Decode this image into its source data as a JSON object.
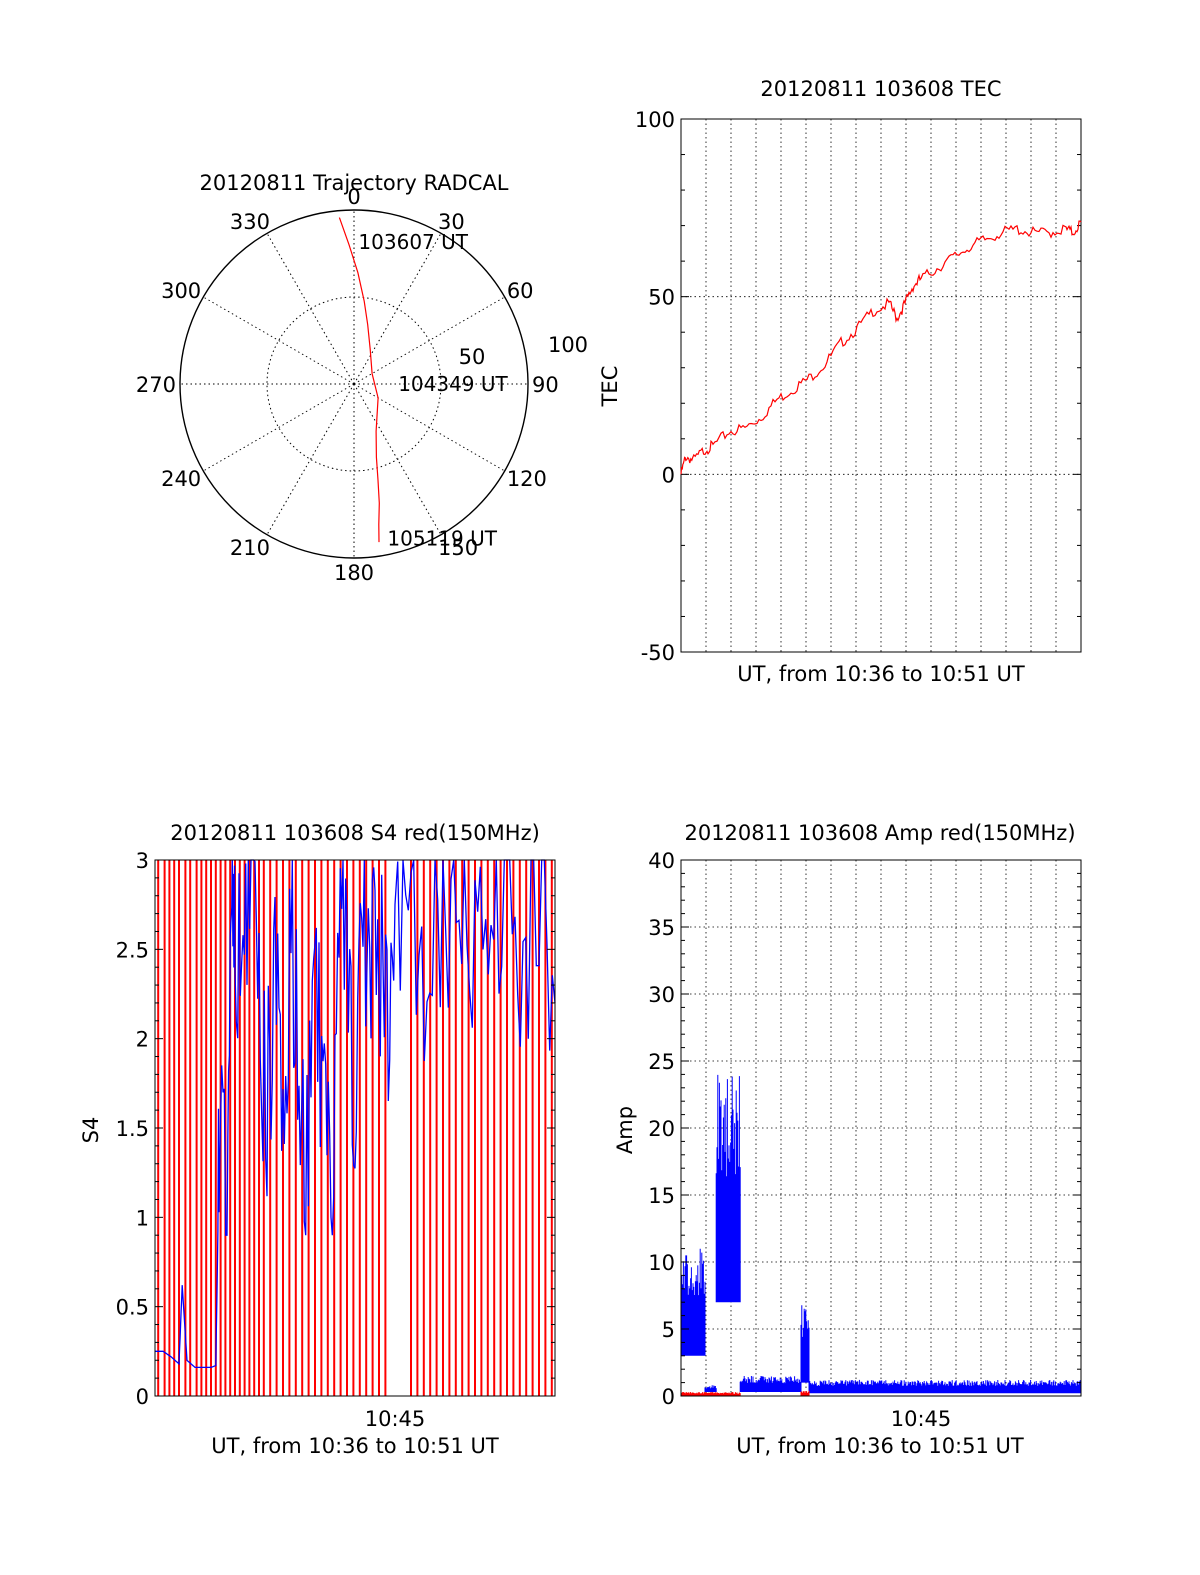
{
  "colors": {
    "red": "#ff0000",
    "blue": "#0000ff",
    "axis": "#000000",
    "grid": "#000000"
  },
  "chart_data": [
    {
      "id": "trajectory",
      "type": "polar",
      "title": "20120811 Trajectory RADCAL",
      "angle_ticks": [
        "0",
        "30",
        "60",
        "90",
        "120",
        "150",
        "180",
        "210",
        "240",
        "270",
        "300",
        "330"
      ],
      "angle_values": [
        0,
        30,
        60,
        90,
        120,
        150,
        180,
        210,
        240,
        270,
        300,
        330
      ],
      "radius_ticks": [
        "50",
        "100"
      ],
      "radius_values": [
        50,
        100
      ],
      "rlim": [
        0,
        100
      ],
      "grid": true,
      "series": [
        {
          "color": "#ff0000",
          "points": [
            [
              355,
              96
            ],
            [
              358,
              80
            ],
            [
              2,
              64
            ],
            [
              7,
              48
            ],
            [
              13,
              35
            ],
            [
              25,
              22
            ],
            [
              60,
              12
            ],
            [
              120,
              16
            ],
            [
              155,
              30
            ],
            [
              163,
              44
            ],
            [
              166,
              57
            ],
            [
              168,
              70
            ],
            [
              170,
              82
            ],
            [
              171,
              92
            ]
          ]
        }
      ],
      "annotations": [
        {
          "text": "103607 UT",
          "az": 5,
          "r": 82
        },
        {
          "text": "104349 UT",
          "az": 90,
          "r": 30
        },
        {
          "text": "105119 UT",
          "az": 165,
          "r": 92
        }
      ]
    },
    {
      "id": "tec",
      "type": "line",
      "title": "20120811 103608 TEC",
      "xlabel": "UT, from 10:36 to 10:51 UT",
      "ylabel": "TEC",
      "xlim": [
        10.6,
        10.85
      ],
      "ylim": [
        -50,
        100
      ],
      "yticks": [
        "-50",
        "0",
        "50",
        "100"
      ],
      "ytick_values": [
        -50,
        0,
        50,
        100
      ],
      "grid": true,
      "series": [
        {
          "color": "#ff0000",
          "x": [
            10.6,
            10.603,
            10.608,
            10.615,
            10.62,
            10.63,
            10.64,
            10.65,
            10.66,
            10.67,
            10.68,
            10.69,
            10.7,
            10.71,
            10.72,
            10.73,
            10.735,
            10.74,
            10.745,
            10.75,
            10.76,
            10.77,
            10.78,
            10.79,
            10.8,
            10.81,
            10.82,
            10.83,
            10.84,
            10.845,
            10.85
          ],
          "y": [
            0,
            5,
            4,
            7,
            8,
            12,
            13,
            16,
            21,
            24,
            27,
            31,
            37,
            41,
            46,
            48,
            44,
            48,
            53,
            55,
            58,
            61,
            64,
            66,
            68,
            69,
            68,
            68,
            69,
            68,
            71
          ]
        }
      ]
    },
    {
      "id": "s4",
      "type": "line",
      "title": "20120811 103608 S4 red(150MHz)",
      "xlabel": "UT, from 10:36 to 10:51 UT",
      "ylabel": "S4",
      "xlim": [
        10.6,
        10.85
      ],
      "ylim": [
        0,
        3
      ],
      "yticks": [
        "0",
        "0.5",
        "1",
        "1.5",
        "2",
        "2.5",
        "3"
      ],
      "ytick_values": [
        0,
        0.5,
        1,
        1.5,
        2,
        2.5,
        3
      ],
      "xticks": [
        "10:45"
      ],
      "xtick_values": [
        10.75
      ],
      "grid": false,
      "series": [
        {
          "color": "#ff0000",
          "spikes_x": [
            10.602,
            10.606,
            10.609,
            10.612,
            10.615,
            10.619,
            10.622,
            10.626,
            10.629,
            10.632,
            10.635,
            10.638,
            10.641,
            10.644,
            10.647,
            10.65,
            10.653,
            10.656,
            10.659,
            10.662,
            10.665,
            10.668,
            10.672,
            10.676,
            10.68,
            10.684,
            10.688,
            10.692,
            10.696,
            10.7,
            10.704,
            10.708,
            10.712,
            10.716,
            10.72,
            10.724,
            10.728,
            10.732,
            10.736,
            10.74,
            10.744,
            10.76,
            10.764,
            10.768,
            10.772,
            10.776,
            10.78,
            10.784,
            10.788,
            10.792,
            10.796,
            10.8,
            10.804,
            10.808,
            10.812,
            10.816,
            10.82,
            10.824,
            10.828,
            10.832,
            10.836,
            10.84,
            10.844,
            10.848
          ]
        },
        {
          "color": "#0000ff",
          "x": [
            10.6,
            10.605,
            10.61,
            10.615,
            10.617,
            10.62,
            10.625,
            10.63,
            10.635,
            10.638,
            10.64,
            10.645,
            10.648,
            10.65,
            10.655,
            10.66,
            10.665,
            10.67,
            10.675,
            10.68,
            10.685,
            10.69,
            10.695,
            10.7,
            10.705,
            10.71,
            10.715,
            10.72,
            10.725,
            10.73,
            10.735,
            10.74,
            10.745,
            10.75,
            10.76,
            10.77,
            10.78,
            10.79,
            10.8,
            10.81,
            10.82,
            10.83,
            10.84,
            10.85
          ],
          "y": [
            0.25,
            0.25,
            0.22,
            0.18,
            0.62,
            0.2,
            0.16,
            0.16,
            0.16,
            0.17,
            1.3,
            1.2,
            2.9,
            2.3,
            2.6,
            2.9,
            2.0,
            1.6,
            2.4,
            1.4,
            2.5,
            2.0,
            1.2,
            2.2,
            1.8,
            1.0,
            2.6,
            2.4,
            1.7,
            2.8,
            2.3,
            2.5,
            2.1,
            2.6,
            2.8,
            2.3,
            2.7,
            2.9,
            2.5,
            2.6,
            2.9,
            2.3,
            2.9,
            2.2
          ]
        }
      ]
    },
    {
      "id": "amp",
      "type": "line",
      "title": "20120811 103608 Amp red(150MHz)",
      "xlabel": "UT, from 10:36 to 10:51 UT",
      "ylabel": "Amp",
      "xlim": [
        10.6,
        10.85
      ],
      "ylim": [
        0,
        40
      ],
      "yticks": [
        "0",
        "5",
        "10",
        "15",
        "20",
        "25",
        "30",
        "35",
        "40"
      ],
      "ytick_values": [
        0,
        5,
        10,
        15,
        20,
        25,
        30,
        35,
        40
      ],
      "xticks": [
        "10:45"
      ],
      "xtick_values": [
        10.75
      ],
      "grid": true,
      "series": [
        {
          "color": "#0000ff",
          "segments": [
            {
              "x0": 10.6,
              "x1": 10.615,
              "lo": 3,
              "hi": 11
            },
            {
              "x0": 10.615,
              "x1": 10.622,
              "lo": 0.3,
              "hi": 0.8
            },
            {
              "x0": 10.622,
              "x1": 10.637,
              "lo": 7,
              "hi": 24
            },
            {
              "x0": 10.637,
              "x1": 10.675,
              "lo": 0.3,
              "hi": 1.5
            },
            {
              "x0": 10.675,
              "x1": 10.68,
              "lo": 1,
              "hi": 7
            },
            {
              "x0": 10.68,
              "x1": 10.85,
              "lo": 0.2,
              "hi": 1.2
            }
          ]
        },
        {
          "color": "#ff0000",
          "segments": [
            {
              "x0": 10.6,
              "x1": 10.637,
              "lo": 0,
              "hi": 0.3
            },
            {
              "x0": 10.675,
              "x1": 10.68,
              "lo": 0,
              "hi": 0.4
            }
          ]
        }
      ]
    }
  ]
}
